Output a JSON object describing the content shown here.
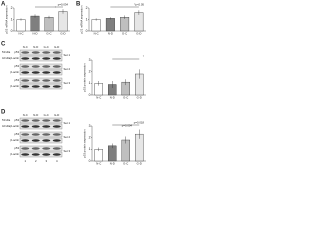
{
  "panels": [
    "A",
    "B",
    "C",
    "D"
  ],
  "chart_data": [
    {
      "type": "bar",
      "ylabel": "p53 mRNA expression",
      "categories": [
        "N-C",
        "N-D",
        "G-C",
        "G-D"
      ],
      "values": [
        1.0,
        1.3,
        1.2,
        1.7
      ],
      "errors": [
        0.1,
        0.15,
        0.12,
        0.2
      ],
      "colors": [
        "#ffffff",
        "#7f7f7f",
        "#bfbfbf",
        "#e6e6e6"
      ],
      "ylim": [
        0,
        2
      ],
      "yticks": [
        0,
        1,
        2
      ],
      "annotations": [
        "p=0.034",
        "*"
      ]
    },
    {
      "type": "bar",
      "ylabel": "p21 mRNA expression",
      "categories": [
        "N-C",
        "N-D",
        "G-C",
        "G-D"
      ],
      "values": [
        1.0,
        1.1,
        1.2,
        1.6
      ],
      "errors": [
        0.1,
        0.1,
        0.15,
        0.2
      ],
      "colors": [
        "#ffffff",
        "#7f7f7f",
        "#bfbfbf",
        "#e6e6e6"
      ],
      "ylim": [
        0,
        2
      ],
      "yticks": [
        0,
        1,
        2
      ],
      "annotations": [
        "*p<0.05"
      ]
    },
    {
      "type": "bar",
      "ylabel": "p53 protein expression",
      "categories": [
        "N-C",
        "N-D",
        "G-C",
        "G-D"
      ],
      "values": [
        1.0,
        0.9,
        1.1,
        1.8
      ],
      "errors": [
        0.2,
        0.3,
        0.25,
        0.4
      ],
      "colors": [
        "#ffffff",
        "#7f7f7f",
        "#bfbfbf",
        "#e6e6e6"
      ],
      "ylim": [
        0,
        3
      ],
      "yticks": [
        0,
        1,
        2,
        3
      ],
      "annotations": [
        "*"
      ]
    },
    {
      "type": "bar",
      "ylabel": "p53 protein expression",
      "categories": [
        "N-C",
        "N-D",
        "G-C",
        "G-D"
      ],
      "values": [
        1.0,
        1.3,
        1.8,
        2.3
      ],
      "errors": [
        0.15,
        0.2,
        0.3,
        0.4
      ],
      "colors": [
        "#ffffff",
        "#7f7f7f",
        "#bfbfbf",
        "#e6e6e6"
      ],
      "ylim": [
        0,
        3
      ],
      "yticks": [
        0,
        1,
        2,
        3
      ],
      "annotations": [
        "p=0.018",
        "p=0.004"
      ]
    }
  ],
  "blots": [
    {
      "lanes": [
        "N-C",
        "N-D",
        "G-C",
        "G-D"
      ],
      "sets": [
        {
          "label": "Set 1",
          "rows": [
            {
              "mw": "53 kDa",
              "protein": "p53"
            },
            {
              "mw": "42 kDa",
              "protein": "β-actin"
            }
          ]
        },
        {
          "label": "Set 2",
          "rows": [
            {
              "protein": "p53"
            },
            {
              "protein": "β-actin"
            }
          ]
        },
        {
          "label": "Set 3",
          "rows": [
            {
              "protein": "p53"
            },
            {
              "protein": "β-actin"
            }
          ]
        }
      ]
    },
    {
      "lanes": [
        "N-C",
        "N-D",
        "G-C",
        "G-D"
      ],
      "sets": [
        {
          "label": "Set 1",
          "rows": [
            {
              "mw": "53 kDa",
              "protein": "p53"
            },
            {
              "mw": "42 kDa",
              "protein": "β-actin"
            }
          ]
        },
        {
          "label": "Set 2",
          "rows": [
            {
              "protein": "p53"
            },
            {
              "protein": "β-actin"
            }
          ]
        },
        {
          "label": "Set 3",
          "rows": [
            {
              "protein": "p53"
            },
            {
              "protein": "β-actin"
            }
          ]
        }
      ],
      "lane_numbers": [
        "1",
        "2",
        "3",
        "4"
      ]
    }
  ]
}
